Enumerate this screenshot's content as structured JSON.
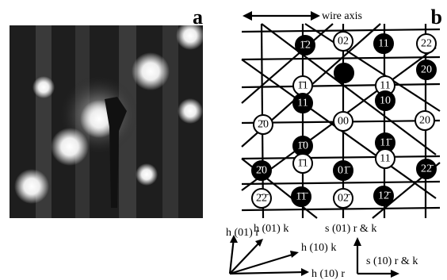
{
  "panel_a": {
    "label": "a"
  },
  "panel_b": {
    "label": "b",
    "axis_label": "wire axis",
    "spots": [
      {
        "label": "1̄2",
        "fill": "black"
      },
      {
        "label": "02",
        "fill": "white"
      },
      {
        "label": "11",
        "fill": "black"
      },
      {
        "label": "22",
        "fill": "white"
      },
      {
        "label": "20",
        "fill": "black"
      },
      {
        "label": "1̄1",
        "fill": "white"
      },
      {
        "label": "11",
        "fill": "white"
      },
      {
        "label": "11",
        "fill": "black"
      },
      {
        "label": "10",
        "fill": "black"
      },
      {
        "label": "2̄0",
        "fill": "white"
      },
      {
        "label": "00",
        "fill": "white"
      },
      {
        "label": "20",
        "fill": "white"
      },
      {
        "label": "1̄0",
        "fill": "black"
      },
      {
        "label": "11̄",
        "fill": "black"
      },
      {
        "label": "1̄1",
        "fill": "white"
      },
      {
        "label": "11",
        "fill": "white"
      },
      {
        "label": "2̄0",
        "fill": "black"
      },
      {
        "label": "01̄",
        "fill": "black"
      },
      {
        "label": "22̄",
        "fill": "black"
      },
      {
        "label": "2̄2̄",
        "fill": "white"
      },
      {
        "label": "1̄1̄",
        "fill": "black"
      },
      {
        "label": "02̄",
        "fill": "white"
      },
      {
        "label": "12̄",
        "fill": "black"
      }
    ],
    "axes_labels": [
      "h (01) r",
      "h (01) k",
      "s (01) r & k",
      "h (10) k",
      "h (10) r",
      "s (10) r & k"
    ]
  }
}
